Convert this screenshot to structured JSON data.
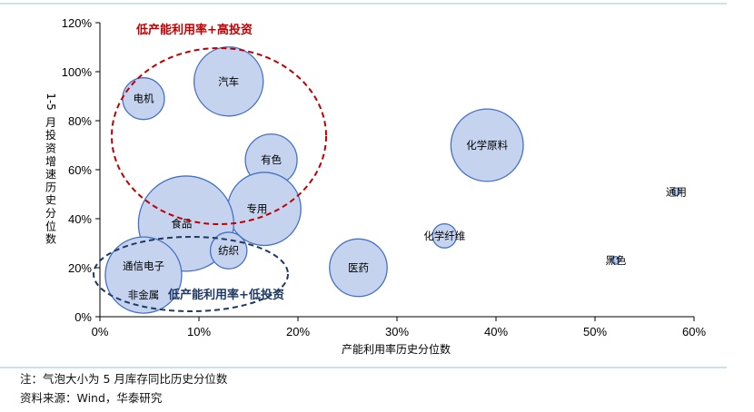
{
  "chart_data": {
    "type": "scatter",
    "subtype": "bubble",
    "xlabel": "产能利用率历史分位数",
    "ylabel": "1-5月投资增速历史分位数",
    "xlim": [
      0,
      0.6
    ],
    "ylim": [
      0,
      1.2
    ],
    "x_ticks": [
      "0%",
      "10%",
      "20%",
      "30%",
      "40%",
      "50%",
      "60%"
    ],
    "y_ticks": [
      "0%",
      "20%",
      "40%",
      "60%",
      "80%",
      "100%",
      "120%"
    ],
    "grid": false,
    "colors": {
      "bubble_fill": "#c5d3ef",
      "bubble_stroke": "#4472c4",
      "red_ellipse": "#c00000",
      "navy_ellipse": "#1f3864",
      "footer_rule": "#9dc3e6"
    },
    "points": [
      {
        "label": "电机",
        "x": 0.044,
        "y": 0.89,
        "size": 0.3
      },
      {
        "label": "汽车",
        "x": 0.13,
        "y": 0.96,
        "size": 0.82
      },
      {
        "label": "有色",
        "x": 0.173,
        "y": 0.64,
        "size": 0.46
      },
      {
        "label": "专用",
        "x": 0.166,
        "y": 0.44,
        "size": 0.92
      },
      {
        "label": "食品",
        "x": 0.087,
        "y": 0.38,
        "size": 1.56
      },
      {
        "label": "纺织",
        "x": 0.13,
        "y": 0.27,
        "size": 0.23
      },
      {
        "label": "通信电子",
        "x": 0.044,
        "y": 0.17,
        "size": 1.0
      },
      {
        "label": "非金属",
        "x": 0.044,
        "y": 0.14,
        "size": 0.0
      },
      {
        "label": "医药",
        "x": 0.261,
        "y": 0.2,
        "size": 0.57
      },
      {
        "label": "化学原料",
        "x": 0.391,
        "y": 0.7,
        "size": 0.9
      },
      {
        "label": "化学纤维",
        "x": 0.348,
        "y": 0.33,
        "size": 0.1
      },
      {
        "label": "通用",
        "x": 0.582,
        "y": 0.51,
        "size": 0.01
      },
      {
        "label": "黑色",
        "x": 0.521,
        "y": 0.23,
        "size": 0.01
      }
    ],
    "annotations": [
      {
        "text": "低产能利用率+高投资",
        "color": "#c00000"
      },
      {
        "text": "低产能利用率+低投资",
        "color": "#1f3864"
      }
    ]
  },
  "notes": {
    "note": "注：气泡大小为 5 月库存同比历史分位数",
    "source": "资料来源：Wind，华泰研究"
  }
}
